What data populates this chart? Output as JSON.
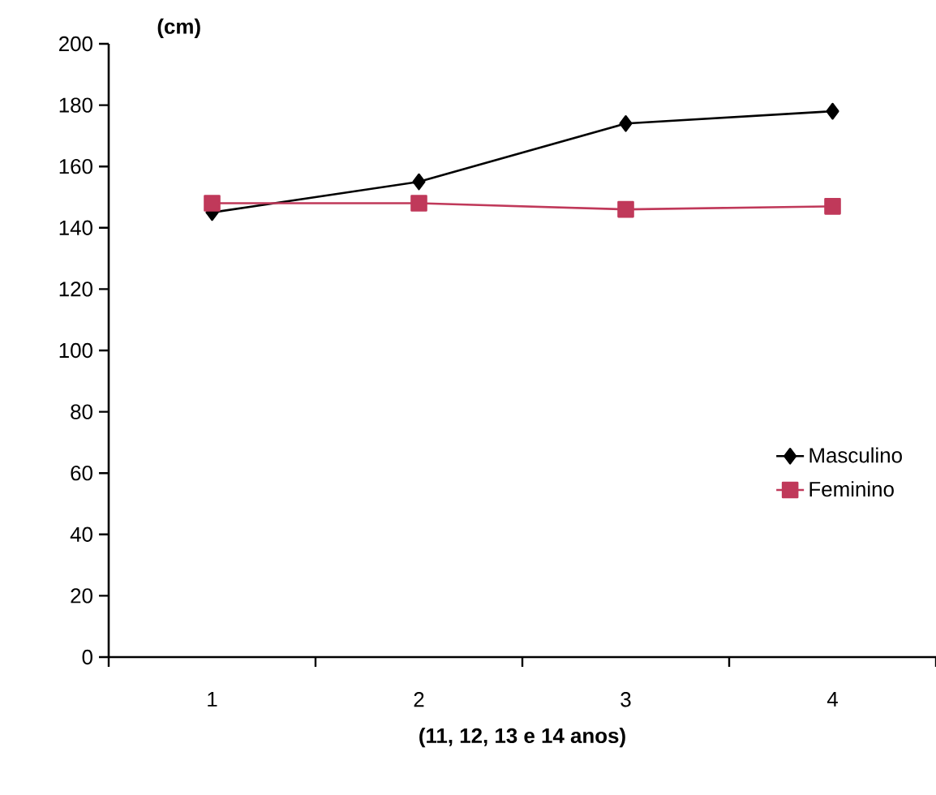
{
  "chart_data": {
    "type": "line",
    "xlabel": "(11, 12, 13 e 14 anos)",
    "ylabel": "(cm)",
    "categories": [
      "1",
      "2",
      "3",
      "4"
    ],
    "series": [
      {
        "name": "Masculino",
        "color": "#000000",
        "marker": "diamond",
        "values": [
          145,
          155,
          174,
          178
        ]
      },
      {
        "name": "Feminino",
        "color": "#c0395a",
        "marker": "square",
        "values": [
          148,
          148,
          146,
          147
        ]
      }
    ],
    "ylim": [
      0,
      200
    ],
    "yticks": [
      0,
      20,
      40,
      60,
      80,
      100,
      120,
      140,
      160,
      180,
      200
    ],
    "legend": "right",
    "grid": false,
    "line_style": "solid"
  }
}
